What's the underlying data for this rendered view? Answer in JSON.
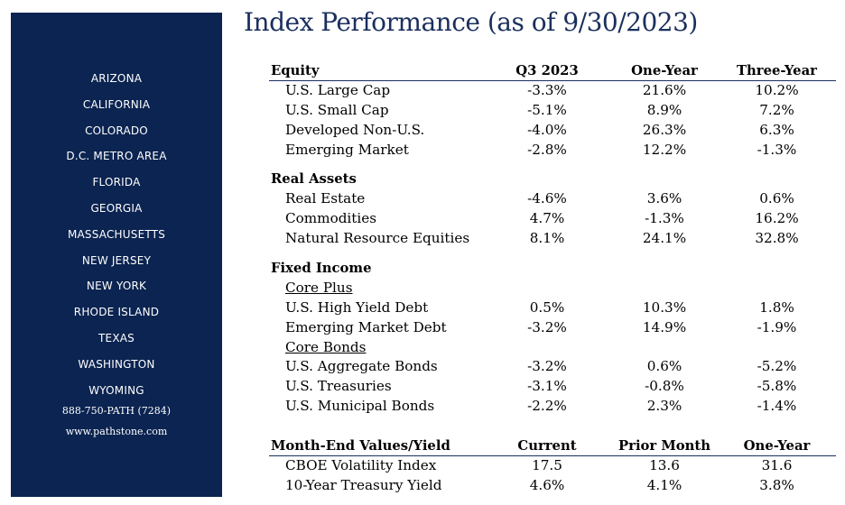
{
  "sidebar": {
    "states": [
      "ARIZONA",
      "CALIFORNIA",
      "COLORADO",
      "D.C. METRO AREA",
      "FLORIDA",
      "GEORGIA",
      "MASSACHUSETTS",
      "NEW JERSEY",
      "NEW YORK",
      "RHODE ISLAND",
      "TEXAS",
      "WASHINGTON",
      "WYOMING"
    ],
    "phone": "888-750-PATH (7284)",
    "website": "www.pathstone.com"
  },
  "title": "Index Performance (as of 9/30/2023)",
  "equity": {
    "header": [
      "Equity",
      "Q3 2023",
      "One-Year",
      "Three-Year"
    ],
    "rows": [
      [
        "U.S. Large Cap",
        "-3.3%",
        "21.6%",
        "10.2%"
      ],
      [
        "U.S. Small Cap",
        "-5.1%",
        "8.9%",
        "7.2%"
      ],
      [
        "Developed Non-U.S.",
        "-4.0%",
        "26.3%",
        "6.3%"
      ],
      [
        "Emerging Market",
        "-2.8%",
        "12.2%",
        "-1.3%"
      ]
    ]
  },
  "real_assets": {
    "header": "Real Assets",
    "rows": [
      [
        "Real Estate",
        "-4.6%",
        "3.6%",
        "0.6%"
      ],
      [
        "Commodities",
        "4.7%",
        "-1.3%",
        "16.2%"
      ],
      [
        "Natural Resource Equities",
        "8.1%",
        "24.1%",
        "32.8%"
      ]
    ]
  },
  "fixed_income": {
    "header": "Fixed Income",
    "core_plus": {
      "label": "Core Plus",
      "rows": [
        [
          "U.S. High Yield Debt",
          "0.5%",
          "10.3%",
          "1.8%"
        ],
        [
          "Emerging Market Debt",
          "-3.2%",
          "14.9%",
          "-1.9%"
        ]
      ]
    },
    "core_bonds": {
      "label": "Core Bonds",
      "rows": [
        [
          "U.S. Aggregate Bonds",
          "-3.2%",
          "0.6%",
          "-5.2%"
        ],
        [
          "U.S. Treasuries",
          "-3.1%",
          "-0.8%",
          "-5.8%"
        ],
        [
          "U.S. Municipal Bonds",
          "-2.2%",
          "2.3%",
          "-1.4%"
        ]
      ]
    }
  },
  "month_end": {
    "header": [
      "Month-End Values/Yield",
      "Current",
      "Prior Month",
      "One-Year"
    ],
    "rows": [
      [
        "CBOE Volatility Index",
        "17.5",
        "13.6",
        "31.6"
      ],
      [
        "10-Year Treasury Yield",
        "4.6%",
        "4.1%",
        "3.8%"
      ]
    ]
  }
}
